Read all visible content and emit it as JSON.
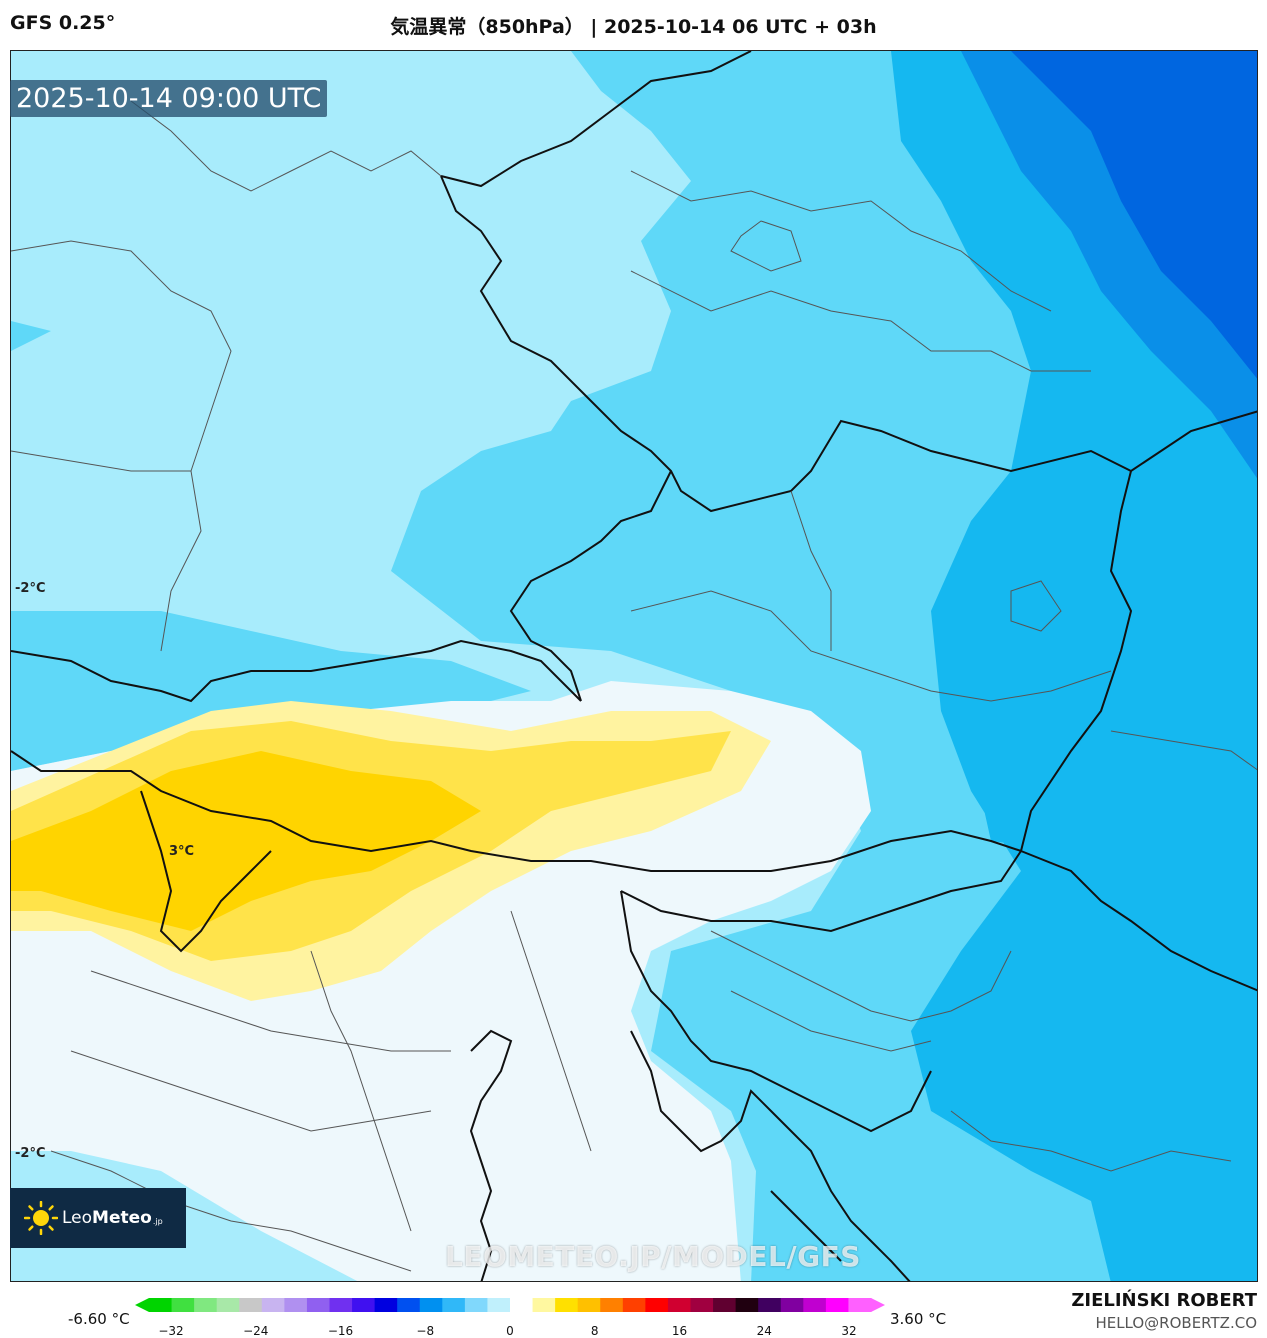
{
  "header": {
    "model": "GFS 0.25°",
    "title": "気温異常（850hPa） | 2025-10-14 06 UTC + 03h"
  },
  "map": {
    "valid_time": "2025-10-14 09:00 UTC",
    "contour_labels": [
      "-2°C",
      "3°C",
      "-2°C"
    ],
    "watermark": "LEOMETEO.JP/MODEL/GFS",
    "colors": {
      "anom_m3": "#15b8f0",
      "anom_m2": "#5fd8f8",
      "anom_m1": "#a8ecfc",
      "anom_0": "#eef8fc",
      "anom_p1": "#fff3a0",
      "anom_p2": "#ffe34a",
      "anom_p3": "#ffd400",
      "anom_m4": "#0a8fe8",
      "anom_m5": "#0066e0",
      "border": "#111111",
      "region_border": "#555555"
    }
  },
  "logo": {
    "brand_light": "Leo",
    "brand_bold": "Meteo",
    "tld": ".jp"
  },
  "colorbar": {
    "min_label": "-6.60 °C",
    "max_label": "3.60 °C",
    "ticks": [
      "−32",
      "−24",
      "−16",
      "−8",
      "0",
      "8",
      "16",
      "24",
      "32"
    ],
    "colors": [
      "#00d400",
      "#40e040",
      "#80e880",
      "#a8e8a8",
      "#c8c8c8",
      "#c8b4f0",
      "#b090f0",
      "#9060f0",
      "#7030f0",
      "#4010f0",
      "#0000e0",
      "#0050f0",
      "#0090f0",
      "#30b8f8",
      "#80d8fc",
      "#c0f0fc",
      "#ffffff",
      "#fff8a0",
      "#ffe000",
      "#ffc000",
      "#ff8000",
      "#ff4000",
      "#ff0000",
      "#d00030",
      "#a00040",
      "#600030",
      "#200010",
      "#400060",
      "#8000a0",
      "#c000d0",
      "#ff00ff",
      "#ff60ff"
    ]
  },
  "footer": {
    "author": "ZIELIŃSKI ROBERT",
    "email": "HELLO@ROBERTZ.CO"
  }
}
